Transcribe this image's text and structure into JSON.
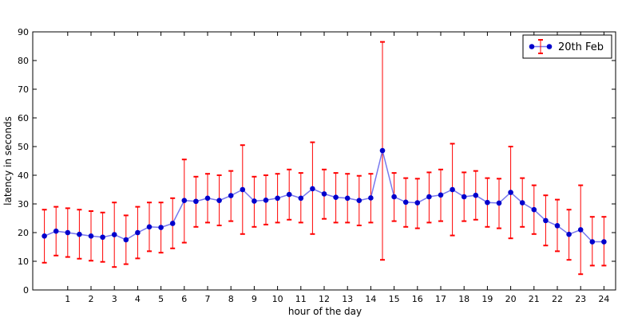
{
  "chart_data": {
    "type": "line",
    "title": "",
    "xlabel": "hour of the day",
    "ylabel": "latency in seconds",
    "xlim": [
      -0.5,
      24.5
    ],
    "ylim": [
      0,
      90
    ],
    "x_ticks": [
      1,
      2,
      3,
      4,
      5,
      6,
      7,
      8,
      9,
      10,
      11,
      12,
      13,
      14,
      15,
      16,
      17,
      18,
      19,
      20,
      21,
      22,
      23,
      24
    ],
    "y_ticks": [
      0,
      10,
      20,
      30,
      40,
      50,
      60,
      70,
      80,
      90
    ],
    "grid": false,
    "legend_position": "top-right",
    "series": [
      {
        "name": "20th Feb",
        "line_color": "#7777ee",
        "marker_color": "#0000cc",
        "errorbar_color": "#ff0000",
        "x": [
          0,
          0.5,
          1,
          1.5,
          2,
          2.5,
          3,
          3.5,
          4,
          4.5,
          5,
          5.5,
          6,
          6.5,
          7,
          7.5,
          8,
          8.5,
          9,
          9.5,
          10,
          10.5,
          11,
          11.5,
          12,
          12.5,
          13,
          13.5,
          14,
          14.5,
          15,
          15.5,
          16,
          16.5,
          17,
          17.5,
          18,
          18.5,
          19,
          19.5,
          20,
          20.5,
          21,
          21.5,
          22,
          22.5,
          23,
          23.5,
          24
        ],
        "y": [
          18.8,
          20.5,
          20.0,
          19.4,
          18.8,
          18.4,
          19.3,
          17.5,
          20.0,
          22.0,
          21.8,
          23.2,
          31.2,
          30.9,
          32.0,
          31.2,
          32.9,
          35.0,
          31.0,
          31.3,
          32.0,
          33.3,
          32.0,
          35.3,
          33.5,
          32.3,
          32.0,
          31.2,
          32.1,
          48.6,
          32.5,
          30.6,
          30.4,
          32.5,
          33.1,
          35.0,
          32.5,
          33.0,
          30.5,
          30.3,
          34.0,
          30.4,
          28.0,
          24.2,
          22.4,
          19.4,
          21.0,
          16.8,
          16.8
        ],
        "err_low": [
          9.5,
          12.0,
          11.5,
          10.9,
          10.2,
          9.8,
          8.0,
          9.0,
          11.0,
          13.5,
          13.0,
          14.5,
          16.5,
          22.0,
          23.5,
          22.5,
          24.0,
          19.5,
          22.0,
          22.8,
          23.5,
          24.5,
          23.5,
          19.5,
          24.8,
          23.5,
          23.5,
          22.5,
          23.5,
          10.5,
          24.0,
          22.0,
          21.5,
          23.5,
          24.0,
          19.0,
          24.0,
          24.5,
          22.0,
          21.5,
          18.0,
          22.0,
          19.5,
          15.5,
          13.5,
          10.5,
          5.5,
          8.5,
          8.5
        ],
        "err_high": [
          28.0,
          29.0,
          28.5,
          28.0,
          27.5,
          27.0,
          30.5,
          26.0,
          29.0,
          30.5,
          30.5,
          32.0,
          45.5,
          39.5,
          40.5,
          40.0,
          41.5,
          50.5,
          39.5,
          40.0,
          40.5,
          42.0,
          40.8,
          51.5,
          42.0,
          40.8,
          40.5,
          39.8,
          40.5,
          86.5,
          40.8,
          39.0,
          38.8,
          41.0,
          42.0,
          51.0,
          41.0,
          41.5,
          39.0,
          38.8,
          50.0,
          39.0,
          36.5,
          33.0,
          31.5,
          28.0,
          36.5,
          25.5,
          25.5
        ]
      }
    ]
  }
}
